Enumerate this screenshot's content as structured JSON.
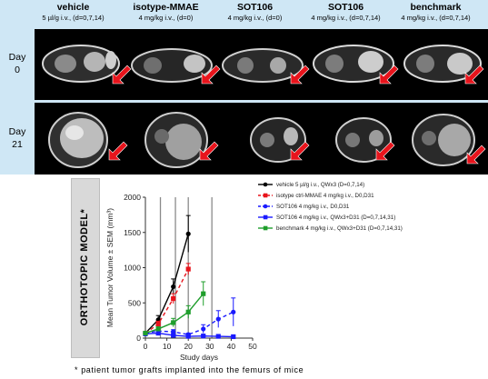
{
  "columns": [
    {
      "title": "vehicle",
      "sub": "5 µl/g i.v., (d=0,7,14)"
    },
    {
      "title": "isotype-MMAE",
      "sub": "4 mg/kg i.v., (d=0)"
    },
    {
      "title": "SOT106",
      "sub": "4 mg/kg i.v., (d=0)"
    },
    {
      "title": "SOT106",
      "sub": "4 mg/kg i.v., (d=0,7,14)"
    },
    {
      "title": "benchmark",
      "sub": "4 mg/kg i.v., (d=0,7,14)"
    }
  ],
  "rows": [
    {
      "line1": "Day",
      "line2": "0"
    },
    {
      "line1": "Day",
      "line2": "21"
    }
  ],
  "model_label": "ORTHOTOPIC MODEL*",
  "footnote": "* patient tumor grafts implanted into the femurs of mice",
  "colors": {
    "header_bg": "#cfe7f5",
    "arrow": "#e8141c",
    "panel_bg": "#000000"
  },
  "chart_data": {
    "type": "line",
    "xlabel": "Study days",
    "ylabel": "Mean Tumor Volume ± SEM (mm³)",
    "xlim": [
      0,
      50
    ],
    "ylim": [
      0,
      2000
    ],
    "xticks": [
      0,
      10,
      20,
      30,
      40,
      50
    ],
    "yticks": [
      0,
      500,
      1000,
      1500,
      2000
    ],
    "dosing_lines_x": [
      7,
      14,
      20,
      31
    ],
    "series": [
      {
        "name": "vehicle 5 µl/g i.v., QWx3 (D=0,7,14)",
        "color": "#000000",
        "marker": "circle",
        "dash": false,
        "x": [
          0,
          6,
          13,
          20
        ],
        "y": [
          70,
          260,
          730,
          1480
        ],
        "err": [
          20,
          60,
          110,
          260
        ]
      },
      {
        "name": "isotype ctrl-MMAE 4 mg/kg i.v., D0,D31",
        "color": "#e8141c",
        "marker": "square",
        "dash": true,
        "x": [
          0,
          6,
          13,
          20
        ],
        "y": [
          70,
          200,
          560,
          980
        ],
        "err": [
          15,
          40,
          70,
          80
        ]
      },
      {
        "name": "SOT106 4 mg/kg i.v., D0,D31",
        "color": "#1a1aff",
        "marker": "circle",
        "dash": true,
        "x": [
          0,
          6,
          13,
          20,
          27,
          34,
          41
        ],
        "y": [
          70,
          100,
          90,
          50,
          130,
          270,
          370
        ],
        "err": [
          10,
          30,
          30,
          20,
          60,
          120,
          200
        ]
      },
      {
        "name": "SOT106 4 mg/kg i.v., QWx3+D31 (D=0,7,14,31)",
        "color": "#1a1aff",
        "marker": "square",
        "dash": false,
        "x": [
          0,
          6,
          13,
          20,
          27,
          34,
          41
        ],
        "y": [
          60,
          70,
          40,
          25,
          30,
          25,
          20
        ],
        "err": [
          10,
          15,
          10,
          8,
          10,
          8,
          8
        ]
      },
      {
        "name": "benchmark 4 mg/kg i.v., QWx3+D31 (D=0,7,14,31)",
        "color": "#1f9e2c",
        "marker": "square",
        "dash": false,
        "x": [
          0,
          6,
          13,
          20,
          27
        ],
        "y": [
          70,
          130,
          220,
          370,
          630
        ],
        "err": [
          10,
          30,
          60,
          90,
          170
        ]
      }
    ]
  }
}
